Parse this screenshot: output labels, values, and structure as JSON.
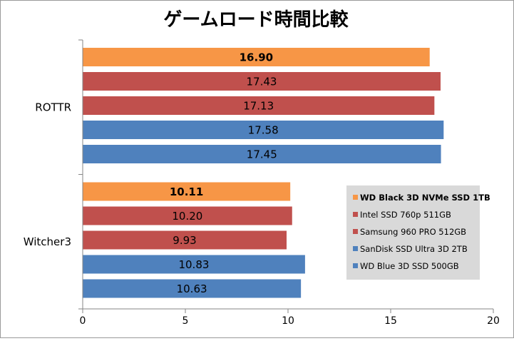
{
  "chart_data": {
    "type": "bar",
    "orientation": "horizontal",
    "title": "ゲームロード時間比較",
    "categories": [
      "ROTTR",
      "Witcher3"
    ],
    "series": [
      {
        "name": "WD Black 3D NVMe SSD 1TB",
        "color": "#F79646",
        "bold": true,
        "values": [
          16.9,
          10.11
        ],
        "labels": [
          "16.90",
          "10.11"
        ]
      },
      {
        "name": "Intel SSD 760p 511GB",
        "color": "#C0504D",
        "bold": false,
        "values": [
          17.43,
          10.2
        ],
        "labels": [
          "17.43",
          "10.20"
        ]
      },
      {
        "name": "Samsung 960 PRO 512GB",
        "color": "#C0504D",
        "bold": false,
        "values": [
          17.13,
          9.93
        ],
        "labels": [
          "17.13",
          "9.93"
        ]
      },
      {
        "name": "SanDisk SSD Ultra 3D 2TB",
        "color": "#4F81BD",
        "bold": false,
        "values": [
          17.58,
          10.83
        ],
        "labels": [
          "17.58",
          "10.83"
        ]
      },
      {
        "name": "WD Blue 3D SSD 500GB",
        "color": "#4F81BD",
        "bold": false,
        "values": [
          17.45,
          10.63
        ],
        "labels": [
          "17.45",
          "10.63"
        ]
      }
    ],
    "xlim": [
      0,
      20
    ],
    "xticks": [
      0,
      5,
      10,
      15,
      20
    ],
    "xtick_labels": [
      "0",
      "5",
      "10",
      "15",
      "20"
    ],
    "grid": false,
    "legend_position": "right",
    "legend_background": "#D9D9D9"
  }
}
